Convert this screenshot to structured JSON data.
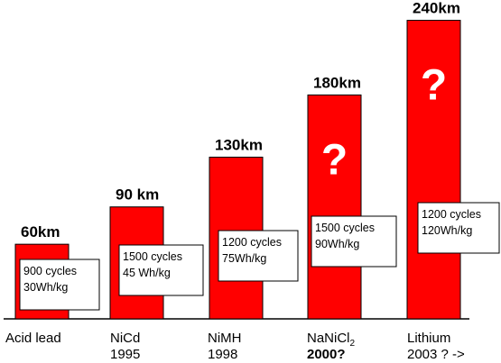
{
  "chart_data": {
    "type": "bar",
    "title": "",
    "xlabel": "",
    "ylabel": "",
    "units": "km",
    "values": [
      60,
      90,
      130,
      180,
      240
    ],
    "value_labels": [
      "60km",
      "90 km",
      "130km",
      "180km",
      "240km"
    ],
    "ylim": [
      0,
      252
    ],
    "categories": [
      {
        "name": "Acid lead",
        "year": "",
        "sub": ""
      },
      {
        "name": "NiCd",
        "year": "1995",
        "sub": ""
      },
      {
        "name": "NiMH",
        "year": "1998",
        "sub": ""
      },
      {
        "name": "NaNiCl",
        "year": "2000?",
        "sub": "2"
      },
      {
        "name": "Lithium",
        "year": "2003 ? ->",
        "sub": ""
      }
    ],
    "boxes": [
      {
        "line1": "900 cycles",
        "line2": "30Wh/kg"
      },
      {
        "line1": "1500 cycles",
        "line2": "45 Wh/kg"
      },
      {
        "line1": "1200 cycles",
        "line2": "75Wh/kg"
      },
      {
        "line1": "1500 cycles",
        "line2": "90Wh/kg"
      },
      {
        "line1": "1200 cycles",
        "line2": "120Wh/kg"
      }
    ],
    "question_marks": [
      "",
      "",
      "",
      "?",
      "?"
    ],
    "bar_color": "#ff0000",
    "axis_color": "#000000"
  }
}
